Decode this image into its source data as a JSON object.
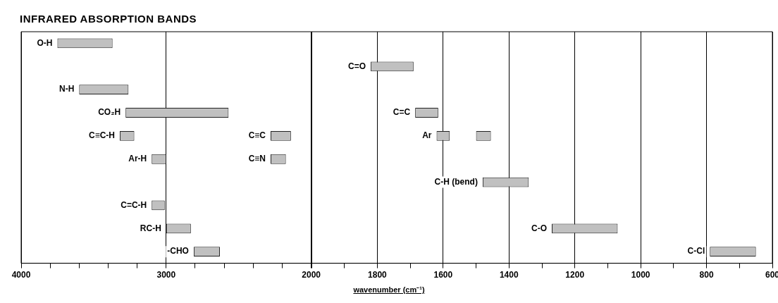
{
  "chart_data": [
    {
      "type": "bar",
      "orientation": "horizontal",
      "title": "INFRARED ABSORPTION BANDS",
      "xlabel": "wavenumber (cm⁻¹)",
      "categories": [
        null,
        null,
        null,
        null,
        null,
        null,
        null,
        null,
        null,
        null
      ],
      "xlim": [
        4000,
        2000
      ],
      "xticks": [
        4000,
        {
          "value": 3800,
          "label": null
        },
        {
          "value": 3600,
          "label": null
        },
        {
          "value": 3400,
          "label": null
        },
        {
          "value": 3200,
          "label": null
        },
        3000,
        {
          "value": 2800,
          "label": null
        },
        {
          "value": 2600,
          "label": null
        },
        {
          "value": 2400,
          "label": null
        },
        {
          "value": 2200,
          "label": null
        },
        2000
      ],
      "grid": "x",
      "tick_labels": "x",
      "series": [
        {
          "name": "O-H",
          "color": "#c0c0c0",
          "values": [
            380,
            null,
            null,
            null,
            null,
            null,
            null,
            null,
            null,
            null
          ],
          "base": [
            3370,
            null,
            null,
            null,
            null,
            null,
            null,
            null,
            null,
            null
          ]
        },
        {
          "name": "N-H",
          "color": "#c0c0c0",
          "values": [
            null,
            null,
            340,
            null,
            null,
            null,
            null,
            null,
            null,
            null
          ],
          "base": [
            null,
            null,
            3260,
            null,
            null,
            null,
            null,
            null,
            null,
            null
          ]
        },
        {
          "name": "CO₂H",
          "color": "#c0c0c0",
          "values": [
            null,
            null,
            null,
            710,
            null,
            null,
            null,
            null,
            null,
            null
          ],
          "base": [
            null,
            null,
            null,
            2570,
            null,
            null,
            null,
            null,
            null,
            null
          ]
        },
        {
          "name": "C≡C-H",
          "color": "#c0c0c0",
          "values": [
            null,
            null,
            null,
            null,
            100,
            null,
            null,
            null,
            null,
            null
          ],
          "base": [
            null,
            null,
            null,
            null,
            3220,
            null,
            null,
            null,
            null,
            null
          ]
        },
        {
          "name": "C≡C",
          "color": "#c0c0c0",
          "values": [
            null,
            null,
            null,
            null,
            140,
            null,
            null,
            null,
            null,
            null
          ],
          "base": [
            null,
            null,
            null,
            null,
            2140,
            null,
            null,
            null,
            null,
            null
          ]
        },
        {
          "name": "Ar-H",
          "color": "#c0c0c0",
          "values": [
            null,
            null,
            null,
            null,
            null,
            100,
            null,
            null,
            null,
            null
          ],
          "base": [
            null,
            null,
            null,
            null,
            null,
            3000,
            null,
            null,
            null,
            null
          ]
        },
        {
          "name": "C≡N",
          "color": "#c0c0c0",
          "values": [
            null,
            null,
            null,
            null,
            null,
            105,
            null,
            null,
            null,
            null
          ],
          "base": [
            null,
            null,
            null,
            null,
            null,
            2175,
            null,
            null,
            null,
            null
          ]
        },
        {
          "name": "C=C-H",
          "color": "#c0c0c0",
          "values": [
            null,
            null,
            null,
            null,
            null,
            null,
            null,
            90,
            null,
            null
          ],
          "base": [
            null,
            null,
            null,
            null,
            null,
            null,
            null,
            3010,
            null,
            null
          ]
        },
        {
          "name": "RC-H",
          "color": "#c0c0c0",
          "values": [
            null,
            null,
            null,
            null,
            null,
            null,
            null,
            null,
            170,
            null
          ],
          "base": [
            null,
            null,
            null,
            null,
            null,
            null,
            null,
            null,
            2830,
            null
          ]
        },
        {
          "name": "-CHO",
          "color": "#c0c0c0",
          "values": [
            null,
            null,
            null,
            null,
            null,
            null,
            null,
            null,
            null,
            180
          ],
          "base": [
            null,
            null,
            null,
            null,
            null,
            null,
            null,
            null,
            null,
            2630
          ]
        }
      ]
    },
    {
      "type": "bar",
      "orientation": "horizontal",
      "categories": [
        null,
        null,
        null,
        null,
        null,
        null,
        null,
        null,
        null,
        null
      ],
      "xlim": [
        2000,
        600
      ],
      "xticks": [
        {
          "value": 2000,
          "label": null
        },
        {
          "value": 1900,
          "label": null
        },
        1800,
        {
          "value": 1700,
          "label": null
        },
        1600,
        {
          "value": 1500,
          "label": null
        },
        1400,
        {
          "value": 1300,
          "label": null
        },
        1200,
        {
          "value": 1100,
          "label": null
        },
        1000,
        {
          "value": 900,
          "label": null
        },
        800,
        {
          "value": 700,
          "label": null
        },
        600
      ],
      "grid": "x",
      "tick_labels": "x",
      "series": [
        {
          "name": "C=O",
          "color": "#c0c0c0",
          "values": [
            null,
            130,
            null,
            null,
            null,
            null,
            null,
            null,
            null,
            null
          ],
          "base": [
            null,
            1690,
            null,
            null,
            null,
            null,
            null,
            null,
            null,
            null
          ]
        },
        {
          "name": "C=C",
          "color": "#c0c0c0",
          "values": [
            null,
            null,
            null,
            70,
            null,
            null,
            null,
            null,
            null,
            null
          ],
          "base": [
            null,
            null,
            null,
            1615,
            null,
            null,
            null,
            null,
            null,
            null
          ]
        },
        {
          "name": "Ar",
          "color": "#c0c0c0",
          "values": [
            null,
            null,
            null,
            null,
            40,
            null,
            null,
            null,
            null,
            null
          ],
          "base": [
            null,
            null,
            null,
            null,
            1580,
            null,
            null,
            null,
            null,
            null
          ]
        },
        {
          "color": "#c0c0c0",
          "values": [
            null,
            null,
            null,
            null,
            45,
            null,
            null,
            null,
            null,
            null
          ],
          "base": [
            null,
            null,
            null,
            null,
            1455,
            null,
            null,
            null,
            null,
            null
          ]
        },
        {
          "name": "C-H (bend)",
          "color": "#c0c0c0",
          "values": [
            null,
            null,
            null,
            null,
            null,
            null,
            140,
            null,
            null,
            null
          ],
          "base": [
            null,
            null,
            null,
            null,
            null,
            null,
            1340,
            null,
            null,
            null
          ]
        },
        {
          "name": "C-O",
          "color": "#c0c0c0",
          "values": [
            null,
            null,
            null,
            null,
            null,
            null,
            null,
            null,
            200,
            null
          ],
          "base": [
            null,
            null,
            null,
            null,
            null,
            null,
            null,
            null,
            1070,
            null
          ]
        },
        {
          "name": "C-Cl",
          "color": "#c0c0c0",
          "values": [
            null,
            null,
            null,
            null,
            null,
            null,
            null,
            null,
            null,
            140
          ],
          "base": [
            null,
            null,
            null,
            null,
            null,
            null,
            null,
            null,
            null,
            650
          ]
        }
      ]
    }
  ]
}
